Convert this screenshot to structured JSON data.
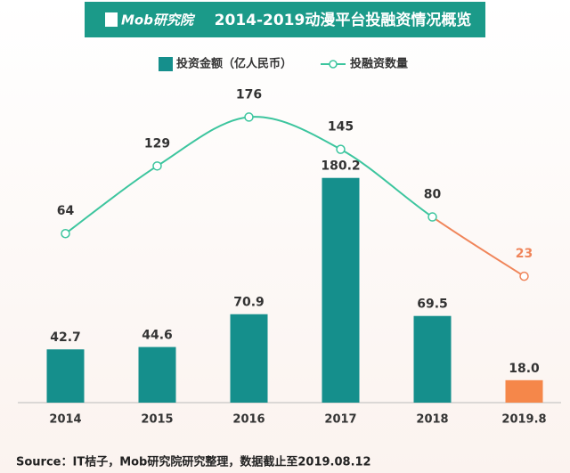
{
  "chart_data": {
    "type": "bar_line",
    "logo": "Mob研究院",
    "title": "2014-2019动漫平台投融资情况概览",
    "categories": [
      "2014",
      "2015",
      "2016",
      "2017",
      "2018",
      "2019.8"
    ],
    "series": [
      {
        "name": "投资金额（亿人民币）",
        "type": "bar",
        "color": "#158f8c",
        "colors": [
          "#158f8c",
          "#158f8c",
          "#158f8c",
          "#158f8c",
          "#158f8c",
          "#f5874a"
        ],
        "values": [
          42.7,
          44.6,
          70.9,
          180.2,
          69.5,
          18.0
        ],
        "value_labels": [
          "42.7",
          "44.6",
          "70.9",
          "180.2",
          "69.5",
          "18.0"
        ]
      },
      {
        "name": "投融资数量",
        "type": "line",
        "axis": "y2",
        "color": "#3cc59e",
        "last_segment_color": "#f0855a",
        "values": [
          64,
          129,
          176,
          145,
          80,
          23
        ]
      }
    ],
    "ylim": [
      0,
      200
    ],
    "y2lim": [
      0,
      250
    ],
    "source": "Source：IT桔子，Mob研究院研究整理，数据截止至2019.08.12"
  }
}
